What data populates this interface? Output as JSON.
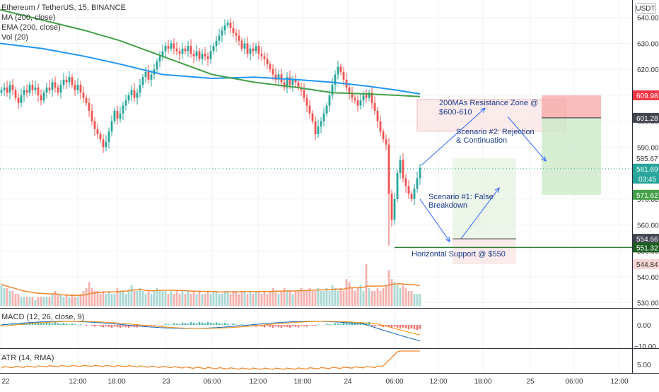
{
  "colors": {
    "up": "#26a69a",
    "down": "#ef5350",
    "ma": "#2196f3",
    "ema": "#43a047",
    "vol_ma": "#f0892f",
    "annot": "#2962ff",
    "hsupport": "#2e7d32",
    "macd_line": "#1565c0",
    "macd_signal": "#ff8f00",
    "atr": "#f0892f"
  },
  "header": {
    "title": "Ethereum / TetherUS, 15, BINANCE",
    "ma_label": "MA (200, close)",
    "ema_label": "EMA (200, close)",
    "vol_label": "Vol (20)",
    "currency_button": "USDT"
  },
  "panes": {
    "macd_label": "MACD (12, 26, close, 9)",
    "atr_label": "ATR (14, RMA)",
    "macd_ticks": [
      "0.00",
      "−10.00"
    ],
    "atr_ticks": [
      "5.00"
    ]
  },
  "chart_data": {
    "type": "candlestick",
    "price_axis": {
      "ylim": [
        528,
        644
      ],
      "ticks": [
        640,
        630,
        620,
        610,
        600,
        590,
        580,
        570,
        560,
        550,
        540,
        530
      ],
      "tick_labels": [
        "640.00",
        "630.00",
        "620.00",
        "610.00",
        "600.00",
        "590.00",
        "580.00",
        "570.00",
        "560.00",
        "550.00",
        "540.00",
        "530.00"
      ]
    },
    "time_axis": {
      "labels": [
        "22",
        "12:00",
        "18:00",
        "23",
        "06:00",
        "12:00",
        "18:00",
        "24",
        "06:00",
        "12:00",
        "18:00",
        "25",
        "06:00",
        "12:00"
      ]
    },
    "price_tags": [
      {
        "value": 609.98,
        "label": "609.98",
        "style": "red"
      },
      {
        "value": 601.28,
        "label": "601.28",
        "style": "dark"
      },
      {
        "value": 585.67,
        "label": "585.67",
        "style": "plain"
      },
      {
        "value": 581.69,
        "label": "581.69",
        "style": "teal"
      },
      {
        "value": 571.62,
        "label": "571.62",
        "style": "green"
      },
      {
        "value": 554.66,
        "label": "554.66",
        "style": "dark"
      },
      {
        "value": 551.32,
        "label": "551.32",
        "style": "darkgreen"
      },
      {
        "value": 544.84,
        "label": "544.84",
        "style": "pink"
      }
    ],
    "countdown": "03:45",
    "current_price": 581.69,
    "horizontal_support": 551.32,
    "candles_close": [
      612,
      613,
      611,
      614,
      612,
      609,
      607,
      610,
      612,
      611,
      614,
      612,
      613,
      610,
      608,
      611,
      613,
      612,
      615,
      613,
      611,
      614,
      616,
      615,
      617,
      614,
      612,
      614,
      611,
      609,
      607,
      604,
      600,
      597,
      595,
      593,
      590,
      592,
      596,
      600,
      604,
      601,
      603,
      606,
      608,
      610,
      612,
      609,
      611,
      614,
      617,
      619,
      616,
      618,
      620,
      623,
      625,
      627,
      629,
      628,
      630,
      628,
      627,
      626,
      628,
      627,
      629,
      626,
      625,
      627,
      624,
      626,
      625,
      624,
      627,
      629,
      631,
      633,
      635,
      637,
      638,
      636,
      634,
      633,
      631,
      628,
      630,
      626,
      628,
      627,
      629,
      626,
      625,
      624,
      622,
      620,
      618,
      616,
      618,
      615,
      613,
      617,
      614,
      616,
      615,
      613,
      612,
      609,
      606,
      603,
      600,
      595,
      598,
      600,
      603,
      606,
      610,
      614,
      618,
      621,
      619,
      616,
      613,
      611,
      609,
      608,
      606,
      608,
      610,
      609,
      611,
      607,
      604,
      600,
      596,
      593,
      591,
      572,
      562,
      570,
      580,
      585,
      578,
      575,
      572,
      570,
      574,
      578,
      582
    ],
    "volume": [
      7,
      6,
      6,
      5,
      5,
      4,
      4,
      3,
      3,
      3,
      3,
      3,
      2,
      3,
      3,
      3,
      3,
      3,
      4,
      5,
      4,
      4,
      3,
      4,
      3,
      4,
      3,
      3,
      4,
      5,
      6,
      8,
      6,
      5,
      5,
      4,
      5,
      4,
      5,
      4,
      4,
      6,
      5,
      5,
      4,
      5,
      7,
      5,
      5,
      6,
      5,
      4,
      5,
      4,
      5,
      6,
      5,
      5,
      5,
      4,
      5,
      4,
      5,
      4,
      5,
      4,
      5,
      4,
      5,
      4,
      5,
      4,
      4,
      5,
      4,
      5,
      5,
      4,
      4,
      5,
      5,
      4,
      5,
      5,
      4,
      5,
      5,
      4,
      5,
      4,
      5,
      5,
      4,
      5,
      4,
      5,
      6,
      5,
      4,
      5,
      6,
      5,
      5,
      4,
      5,
      5,
      6,
      5,
      5,
      6,
      5,
      5,
      6,
      5,
      5,
      6,
      5,
      7,
      6,
      5,
      6,
      5,
      9,
      8,
      6,
      5,
      6,
      7,
      5,
      14,
      6,
      5,
      5,
      6,
      5,
      6,
      7,
      12,
      9,
      8,
      7,
      6,
      7,
      6,
      5,
      5,
      4,
      4,
      4
    ],
    "annotations": {
      "resistance_zone": {
        "label_line1": "200MAs Resistance Zone @",
        "label_line2": "$600-610",
        "price_top": 610,
        "price_bottom": 600
      },
      "scenario2": {
        "label_line1": "Scenario #2: Rejection",
        "label_line2": "& Continuation"
      },
      "scenario1": {
        "label_line1": "Scenario #1: False",
        "label_line2": "Breakdown"
      },
      "support": {
        "label": "Horizontal Support @ $550"
      }
    }
  }
}
